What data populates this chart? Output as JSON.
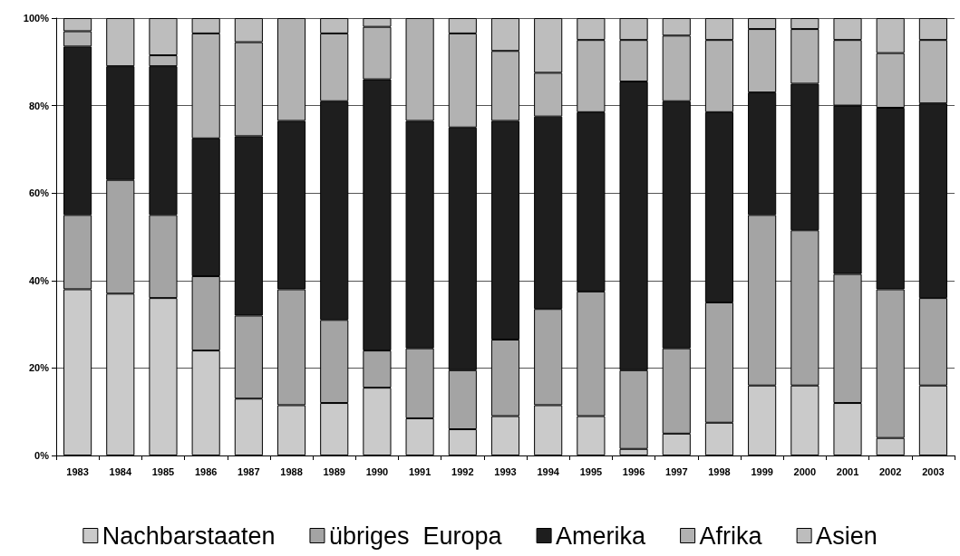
{
  "chart_data": {
    "type": "bar",
    "stacked": true,
    "categories": [
      "1983",
      "1984",
      "1985",
      "1986",
      "1987",
      "1988",
      "1989",
      "1990",
      "1991",
      "1992",
      "1993",
      "1994",
      "1995",
      "1996",
      "1997",
      "1998",
      "1999",
      "2000",
      "2001",
      "2002",
      "2003"
    ],
    "series": [
      {
        "name": "Nachbarstaaten",
        "color": "#cacaca",
        "values": [
          38,
          37,
          36,
          24,
          13,
          11.5,
          12,
          15.5,
          8.5,
          6,
          9,
          11.5,
          9,
          1.5,
          5,
          7.5,
          16,
          16,
          12,
          4,
          16
        ]
      },
      {
        "name": "übriges  Europa",
        "color": "#a4a4a4",
        "values": [
          17,
          26,
          19,
          17,
          19,
          26.5,
          19,
          8.5,
          16,
          13.5,
          17.5,
          22,
          28.5,
          18,
          19.5,
          27.5,
          39,
          35.5,
          29.5,
          34,
          20
        ]
      },
      {
        "name": "Amerika",
        "color": "#1e1e1e",
        "values": [
          38.5,
          26,
          34,
          31.5,
          41,
          38.5,
          50,
          62,
          52,
          55.5,
          50,
          44,
          41,
          66,
          56.5,
          43.5,
          28,
          33.5,
          38.5,
          41.5,
          44.5
        ]
      },
      {
        "name": "Afrika",
        "color": "#b2b2b2",
        "values": [
          3.5,
          0,
          2.5,
          24,
          21.5,
          23.5,
          15.5,
          12,
          23.5,
          21.5,
          16,
          10,
          16.5,
          9.5,
          15,
          16.5,
          14.5,
          12.5,
          15,
          12.5,
          14.5
        ]
      },
      {
        "name": "Asien",
        "color": "#bdbdbd",
        "values": [
          3,
          11,
          8.5,
          3.5,
          5.5,
          0,
          3.5,
          2,
          0,
          3.5,
          7.5,
          12.5,
          5,
          5,
          4,
          5,
          2.5,
          2.5,
          5,
          8,
          5
        ]
      }
    ],
    "ylim": [
      0,
      100
    ],
    "yticks": [
      {
        "value": 0,
        "label": "0%"
      },
      {
        "value": 20,
        "label": "20%"
      },
      {
        "value": 40,
        "label": "40%"
      },
      {
        "value": 60,
        "label": "60%"
      },
      {
        "value": 80,
        "label": "80%"
      },
      {
        "value": 100,
        "label": "100%"
      }
    ],
    "grid": "y",
    "legend": "bottom"
  }
}
